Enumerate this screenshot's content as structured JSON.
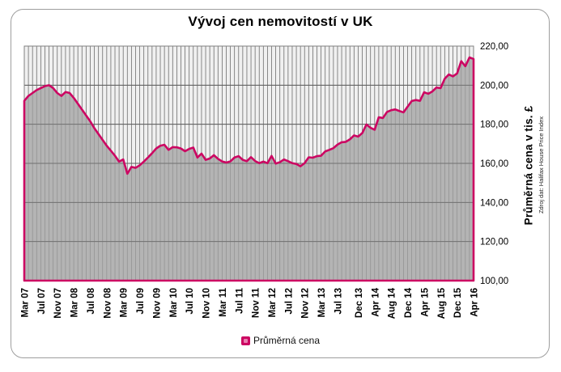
{
  "chart_data": {
    "type": "area",
    "title": "Vývoj cen nemovitostí v UK",
    "ylabel": "Průměrná cena v tis. £",
    "source_note": "Zdroj dat: Halifax House Price Index",
    "legend": {
      "position": "bottom",
      "label": "Průměrná cena"
    },
    "x_unit": "month",
    "x_range": "Mar 2007 – Apr 2016",
    "ylim": [
      100,
      220
    ],
    "grid": {
      "vertical_per_point": true,
      "horizontal_step": 20
    },
    "y_ticks": [
      {
        "v": 220,
        "label": "220,00"
      },
      {
        "v": 200,
        "label": "200,00"
      },
      {
        "v": 180,
        "label": "180,00"
      },
      {
        "v": 160,
        "label": "160,00"
      },
      {
        "v": 140,
        "label": "140,00"
      },
      {
        "v": 120,
        "label": "120,00"
      },
      {
        "v": 100,
        "label": "100,00"
      }
    ],
    "x_ticks": [
      {
        "i": 0,
        "label": "Mar 07"
      },
      {
        "i": 4,
        "label": "Jul 07"
      },
      {
        "i": 8,
        "label": "Nov 07"
      },
      {
        "i": 12,
        "label": "Mar 08"
      },
      {
        "i": 16,
        "label": "Jul 08"
      },
      {
        "i": 20,
        "label": "Nov 08"
      },
      {
        "i": 24,
        "label": "Mar 09"
      },
      {
        "i": 28,
        "label": "Jul 09"
      },
      {
        "i": 32,
        "label": "Nov 09"
      },
      {
        "i": 36,
        "label": "Mar 10"
      },
      {
        "i": 40,
        "label": "Jul 10"
      },
      {
        "i": 44,
        "label": "Nov 10"
      },
      {
        "i": 48,
        "label": "Mar 11"
      },
      {
        "i": 52,
        "label": "Jul 11"
      },
      {
        "i": 56,
        "label": "Nov 11"
      },
      {
        "i": 60,
        "label": "Mar 12"
      },
      {
        "i": 64,
        "label": "Jul 12"
      },
      {
        "i": 68,
        "label": "Nov 12"
      },
      {
        "i": 72,
        "label": "Mar 13"
      },
      {
        "i": 76,
        "label": "Jul 13"
      },
      {
        "i": 81,
        "label": "Dec 13"
      },
      {
        "i": 85,
        "label": "Apr 14"
      },
      {
        "i": 89,
        "label": "Aug 14"
      },
      {
        "i": 93,
        "label": "Dec 14"
      },
      {
        "i": 97,
        "label": "Apr 15"
      },
      {
        "i": 101,
        "label": "Aug 15"
      },
      {
        "i": 105,
        "label": "Dec 15"
      },
      {
        "i": 109,
        "label": "Apr 16"
      }
    ],
    "series": [
      {
        "name": "Průměrná cena",
        "values": [
          192.0,
          194.5,
          196.0,
          197.5,
          198.5,
          199.5,
          200.0,
          198.5,
          196.0,
          194.5,
          196.5,
          196.0,
          193.5,
          190.5,
          187.5,
          184.5,
          181.5,
          178.0,
          175.0,
          172.0,
          169.0,
          166.5,
          163.9,
          160.9,
          162.0,
          154.7,
          158.2,
          157.7,
          159.0,
          160.9,
          163.0,
          165.2,
          167.6,
          169.0,
          169.5,
          166.9,
          168.3,
          168.2,
          167.6,
          166.2,
          167.4,
          168.1,
          163.0,
          165.0,
          161.8,
          162.5,
          164.2,
          162.3,
          161.0,
          160.4,
          161.0,
          163.0,
          163.7,
          161.8,
          161.1,
          163.2,
          161.2,
          160.1,
          160.9,
          160.1,
          163.8,
          159.9,
          160.6,
          162.0,
          161.1,
          160.1,
          159.7,
          158.5,
          160.1,
          163.1,
          162.9,
          163.7,
          163.9,
          166.1,
          166.9,
          167.8,
          169.6,
          170.8,
          171.0,
          172.3,
          174.3,
          173.7,
          175.5,
          179.9,
          178.2,
          177.2,
          183.6,
          183.2,
          186.3,
          187.2,
          187.6,
          186.8,
          186.1,
          189.0,
          191.9,
          192.4,
          192.0,
          196.4,
          195.6,
          196.8,
          198.8,
          198.5,
          203.3,
          205.5,
          204.5,
          206.0,
          212.3,
          209.7,
          214.2,
          213.4
        ]
      }
    ],
    "colors": {
      "line": "#CC0662",
      "fill": "#A0A0A0",
      "plot_bg": "#F0F0F0",
      "grid": "#6E6E6E",
      "plot_border": "#808080",
      "marker_inner": "#E87FB0",
      "text": "#000000"
    }
  }
}
